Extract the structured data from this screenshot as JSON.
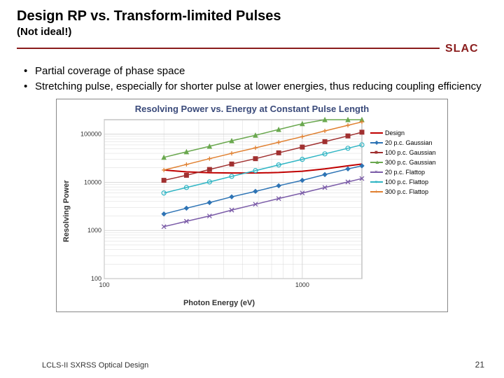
{
  "title": "Design RP vs. Transform-limited Pulses",
  "subtitle": "(Not ideal!)",
  "logo_text": "SLAC",
  "logo_color": "#8a1c1c",
  "bullets": [
    "Partial coverage of phase space",
    "Stretching pulse, especially for shorter pulse at lower energies, thus reducing coupling efficiency"
  ],
  "chart": {
    "type": "line",
    "title": "Resolving Power vs. Energy at Constant Pulse Length",
    "xlabel": "Photon Energy (eV)",
    "ylabel": "Resolving Power",
    "xscale": "log",
    "yscale": "log",
    "xlim": [
      100,
      2000
    ],
    "ylim": [
      100,
      200000
    ],
    "xticks": [
      100,
      1000
    ],
    "xticklabels": [
      "100",
      "1000"
    ],
    "yticks": [
      100,
      1000,
      10000,
      100000
    ],
    "yticklabels": [
      "100",
      "1000",
      "10000",
      "100000"
    ],
    "xminor": [
      200,
      300,
      400,
      500,
      600,
      700,
      800,
      900,
      2000
    ],
    "yminor": [
      200,
      300,
      400,
      500,
      600,
      700,
      800,
      900,
      2000,
      3000,
      4000,
      5000,
      6000,
      7000,
      8000,
      9000,
      20000,
      30000,
      40000,
      50000,
      60000,
      70000,
      80000,
      90000,
      200000
    ],
    "background_color": "#ffffff",
    "grid_color": "#cfcfcf",
    "axis_color": "#888888",
    "series": [
      {
        "name": "Design",
        "color": "#c00000",
        "marker": "",
        "linewidth": 2,
        "x": [
          200,
          260,
          340,
          440,
          580,
          760,
          1000,
          1300,
          1700,
          2000
        ],
        "y": [
          18000,
          16500,
          15800,
          15600,
          15600,
          16000,
          17000,
          19000,
          22000,
          24000
        ]
      },
      {
        "name": "20 p.c. Gaussian",
        "color": "#2e74b5",
        "marker": "diamond",
        "linewidth": 1.5,
        "x": [
          200,
          260,
          340,
          440,
          580,
          760,
          1000,
          1300,
          1700,
          2000
        ],
        "y": [
          2200,
          2900,
          3800,
          5000,
          6500,
          8500,
          11000,
          14500,
          19000,
          22000
        ]
      },
      {
        "name": "100 p.c. Gaussian",
        "color": "#a03030",
        "marker": "square",
        "linewidth": 1.5,
        "x": [
          200,
          260,
          340,
          440,
          580,
          760,
          1000,
          1300,
          1700,
          2000
        ],
        "y": [
          11000,
          14000,
          18500,
          24000,
          31000,
          41000,
          54000,
          70000,
          92000,
          110000
        ]
      },
      {
        "name": "300 p.c. Gaussian",
        "color": "#6aa84f",
        "marker": "triangle",
        "linewidth": 1.5,
        "x": [
          200,
          260,
          340,
          440,
          580,
          760,
          1000,
          1300,
          1700,
          2000
        ],
        "y": [
          33000,
          43000,
          56000,
          73000,
          95000,
          125000,
          165000,
          200000,
          200000,
          200000
        ]
      },
      {
        "name": "20 p.c. Flattop",
        "color": "#7b5ca8",
        "marker": "x",
        "linewidth": 1.5,
        "x": [
          200,
          260,
          340,
          440,
          580,
          760,
          1000,
          1300,
          1700,
          2000
        ],
        "y": [
          1200,
          1550,
          2000,
          2650,
          3500,
          4600,
          6000,
          7800,
          10200,
          12000
        ]
      },
      {
        "name": "100 p.c. Flattop",
        "color": "#2fb5c4",
        "marker": "circle",
        "linewidth": 1.5,
        "x": [
          200,
          260,
          340,
          440,
          580,
          760,
          1000,
          1300,
          1700,
          2000
        ],
        "y": [
          6000,
          7800,
          10200,
          13300,
          17500,
          23000,
          30000,
          39000,
          51000,
          60000
        ]
      },
      {
        "name": "300 p.c. Flattop",
        "color": "#e08030",
        "marker": "plus",
        "linewidth": 1.5,
        "x": [
          200,
          260,
          340,
          440,
          580,
          760,
          1000,
          1300,
          1700,
          2000
        ],
        "y": [
          18000,
          23500,
          31000,
          40000,
          52000,
          68000,
          89000,
          117000,
          153000,
          180000
        ]
      }
    ]
  },
  "footer_left": "LCLS-II SXRSS Optical Design",
  "page_number": "21"
}
